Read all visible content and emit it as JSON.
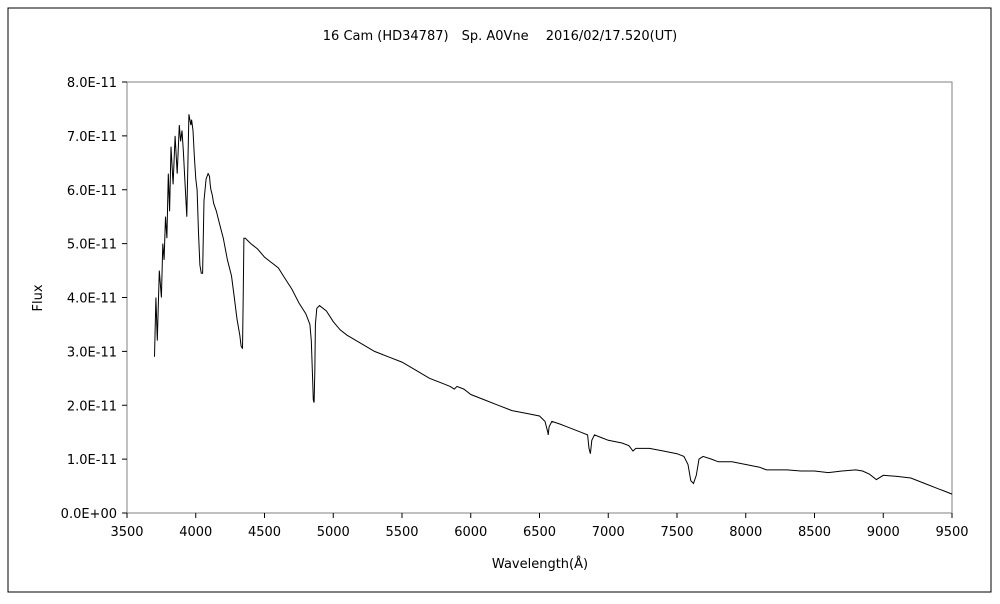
{
  "chart_data": {
    "type": "line",
    "title": "16 Cam (HD34787)　Sp. A0Vne　 2016/02/17.520(UT)",
    "xlabel": "Wavelength(Å)",
    "ylabel": "Flux",
    "xlim": [
      3500,
      9500
    ],
    "ylim": [
      0,
      8e-11
    ],
    "x_ticks": [
      3500,
      4000,
      4500,
      5000,
      5500,
      6000,
      6500,
      7000,
      7500,
      8000,
      8500,
      9000,
      9500
    ],
    "x_tick_labels": [
      "3500",
      "4000",
      "4500",
      "5000",
      "5500",
      "6000",
      "6500",
      "7000",
      "7500",
      "8000",
      "8500",
      "9000",
      "9500"
    ],
    "y_ticks": [
      0,
      1e-11,
      2e-11,
      3e-11,
      4e-11,
      5e-11,
      6e-11,
      7e-11,
      8e-11
    ],
    "y_tick_labels": [
      "0.0E+00",
      "1.0E-11",
      "2.0E-11",
      "3.0E-11",
      "4.0E-11",
      "5.0E-11",
      "6.0E-11",
      "7.0E-11",
      "8.0E-11"
    ],
    "grid": false,
    "legend": "none",
    "line_color": "#000000",
    "series": [
      {
        "x": [
          3700,
          3710,
          3720,
          3735,
          3750,
          3760,
          3770,
          3780,
          3790,
          3800,
          3810,
          3820,
          3835,
          3850,
          3865,
          3880,
          3890,
          3900,
          3910,
          3920,
          3935,
          3950,
          3965,
          3970,
          3980,
          3990,
          4000,
          4010,
          4020,
          4030,
          4040,
          4050,
          4060,
          4075,
          4090,
          4100,
          4105,
          4110,
          4120,
          4130,
          4150,
          4170,
          4200,
          4230,
          4260,
          4280,
          4300,
          4320,
          4330,
          4340,
          4345,
          4350,
          4360,
          4380,
          4400,
          4450,
          4500,
          4550,
          4600,
          4650,
          4700,
          4750,
          4800,
          4830,
          4840,
          4850,
          4855,
          4861,
          4866,
          4870,
          4880,
          4900,
          4950,
          5000,
          5050,
          5100,
          5200,
          5300,
          5400,
          5500,
          5600,
          5700,
          5800,
          5850,
          5880,
          5900,
          5950,
          6000,
          6100,
          6200,
          6300,
          6400,
          6500,
          6540,
          6560,
          6563,
          6570,
          6590,
          6650,
          6700,
          6800,
          6850,
          6860,
          6870,
          6880,
          6900,
          6950,
          7000,
          7100,
          7150,
          7180,
          7200,
          7300,
          7400,
          7500,
          7550,
          7580,
          7600,
          7620,
          7640,
          7660,
          7690,
          7750,
          7800,
          7900,
          8000,
          8100,
          8150,
          8200,
          8300,
          8400,
          8500,
          8600,
          8700,
          8800,
          8850,
          8900,
          8950,
          9000,
          9100,
          9200,
          9300,
          9400,
          9450,
          9500
        ],
        "y": [
          2.9e-11,
          4e-11,
          3.2e-11,
          4.5e-11,
          4e-11,
          5e-11,
          4.7e-11,
          5.5e-11,
          5.1e-11,
          6.3e-11,
          5.6e-11,
          6.8e-11,
          6.1e-11,
          7e-11,
          6.3e-11,
          7.2e-11,
          6.9e-11,
          7.1e-11,
          6.7e-11,
          6.2e-11,
          5.5e-11,
          7.4e-11,
          7.2e-11,
          7.3e-11,
          7.1e-11,
          6.6e-11,
          6.2e-11,
          6e-11,
          5.2e-11,
          4.6e-11,
          4.45e-11,
          4.45e-11,
          5.8e-11,
          6.2e-11,
          6.3e-11,
          6.25e-11,
          6.1e-11,
          6e-11,
          5.9e-11,
          5.75e-11,
          5.6e-11,
          5.4e-11,
          5.1e-11,
          4.7e-11,
          4.4e-11,
          4e-11,
          3.6e-11,
          3.3e-11,
          3.1e-11,
          3.05e-11,
          4e-11,
          5.1e-11,
          5.1e-11,
          5.05e-11,
          5e-11,
          4.9e-11,
          4.75e-11,
          4.65e-11,
          4.55e-11,
          4.35e-11,
          4.15e-11,
          3.9e-11,
          3.7e-11,
          3.5e-11,
          3.2e-11,
          2.5e-11,
          2.1e-11,
          2.05e-11,
          2.6e-11,
          3.5e-11,
          3.8e-11,
          3.85e-11,
          3.75e-11,
          3.55e-11,
          3.4e-11,
          3.3e-11,
          3.15e-11,
          3e-11,
          2.9e-11,
          2.8e-11,
          2.65e-11,
          2.5e-11,
          2.4e-11,
          2.35e-11,
          2.3e-11,
          2.35e-11,
          2.3e-11,
          2.2e-11,
          2.1e-11,
          2e-11,
          1.9e-11,
          1.85e-11,
          1.8e-11,
          1.7e-11,
          1.5e-11,
          1.45e-11,
          1.6e-11,
          1.7e-11,
          1.65e-11,
          1.6e-11,
          1.5e-11,
          1.45e-11,
          1.2e-11,
          1.1e-11,
          1.35e-11,
          1.45e-11,
          1.4e-11,
          1.35e-11,
          1.3e-11,
          1.25e-11,
          1.15e-11,
          1.2e-11,
          1.2e-11,
          1.15e-11,
          1.1e-11,
          1.05e-11,
          9e-12,
          6e-12,
          5.5e-12,
          7e-12,
          1e-11,
          1.05e-11,
          1e-11,
          9.5e-12,
          9.5e-12,
          9e-12,
          8.5e-12,
          8e-12,
          8e-12,
          8e-12,
          7.8e-12,
          7.8e-12,
          7.5e-12,
          7.8e-12,
          8e-12,
          7.8e-12,
          7.2e-12,
          6.2e-12,
          7e-12,
          6.8e-12,
          6.5e-12,
          5.5e-12,
          4.5e-12,
          4e-12,
          3.5e-12
        ]
      }
    ]
  }
}
